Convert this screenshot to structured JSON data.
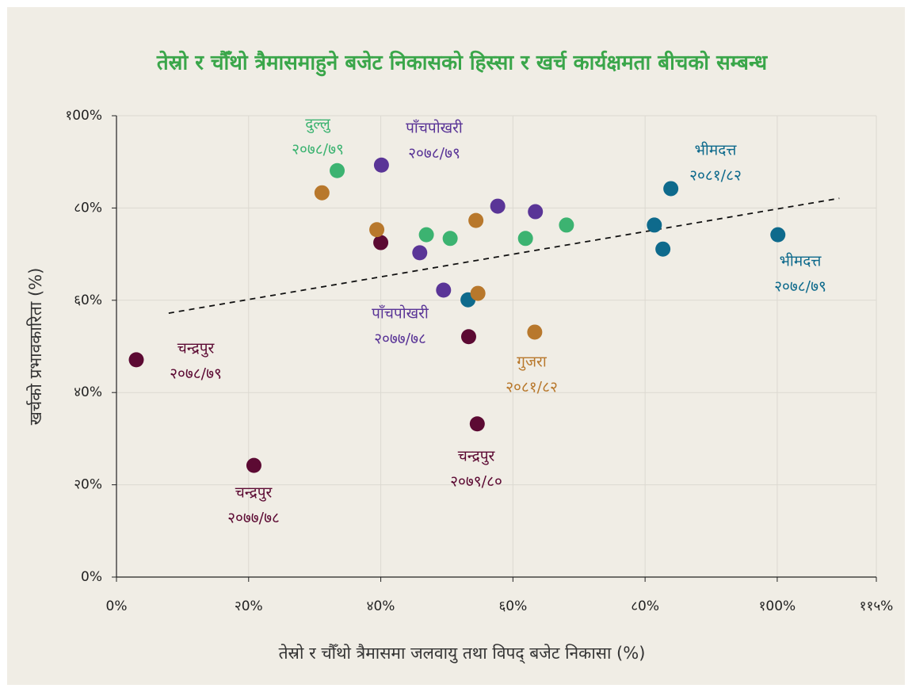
{
  "chart_data": {
    "type": "scatter",
    "title": "तेस्रो र चौँथो त्रैमासमाहुने बजेट निकासको हिस्सा र खर्च कार्यक्षमता बीचको सम्बन्ध",
    "x_label": "तेस्रो र चौँथो त्रैमासमा जलवायु तथा विपद् बजेट निकासा (%)",
    "y_label": "खर्चको प्रभावकारिता (%)",
    "xlim": [
      0,
      115
    ],
    "ylim": [
      0,
      100
    ],
    "xticks": [
      {
        "value": 0,
        "label": "0%"
      },
      {
        "value": 20,
        "label": "२0%"
      },
      {
        "value": 40,
        "label": "४0%"
      },
      {
        "value": 60,
        "label": "६0%"
      },
      {
        "value": 80,
        "label": "८0%"
      },
      {
        "value": 100,
        "label": "१00%"
      },
      {
        "value": 115,
        "label": "११५%"
      }
    ],
    "yticks": [
      {
        "value": 0,
        "label": "0%"
      },
      {
        "value": 20,
        "label": "२0%"
      },
      {
        "value": 40,
        "label": "४0%"
      },
      {
        "value": 60,
        "label": "६0%"
      },
      {
        "value": 80,
        "label": "८0%"
      },
      {
        "value": 100,
        "label": "१00%"
      }
    ],
    "grid": true,
    "series": [
      {
        "color": "#3cb371",
        "x": [
          33.4,
          46.9,
          50.5,
          61.9,
          68.1
        ],
        "values": [
          88.1,
          74.2,
          73.4,
          73.4,
          76.3
        ]
      },
      {
        "color": "#5a3597",
        "x": [
          40.1,
          45.9,
          49.5,
          57.7,
          63.4
        ],
        "values": [
          89.3,
          70.3,
          62.2,
          80.4,
          79.2
        ]
      },
      {
        "color": "#0e6a8c",
        "x": [
          53.2,
          81.4,
          82.7,
          83.9,
          100.1
        ],
        "values": [
          60.1,
          76.3,
          71.1,
          84.2,
          74.2
        ]
      },
      {
        "color": "#5c0a33",
        "x": [
          3.0,
          20.8,
          40.0,
          53.3,
          54.6
        ],
        "values": [
          47.1,
          24.2,
          72.5,
          52.1,
          33.2
        ]
      },
      {
        "color": "#b8782c",
        "x": [
          31.1,
          39.4,
          54.4,
          54.7,
          63.3
        ],
        "values": [
          83.3,
          75.3,
          77.3,
          61.5,
          53.1
        ]
      }
    ],
    "trend_line": {
      "x": [
        7.9,
        109.4
      ],
      "values": [
        57.2,
        82.1
      ]
    },
    "annotations": [
      {
        "name": "दुल्लु",
        "period": "२०७८/७९",
        "color": "#3cb371"
      },
      {
        "name": "पाँचपोखरी",
        "period": "२०७८/७९",
        "color": "#5a3597"
      },
      {
        "name": "भीमदत्त",
        "period": "२०८१/८२",
        "color": "#0e6a8c"
      },
      {
        "name": "भीमदत्त",
        "period": "२०७८/७९",
        "color": "#0e6a8c"
      },
      {
        "name": "पाँचपोखरी",
        "period": "२०७७/७८",
        "color": "#5a3597"
      },
      {
        "name": "चन्द्रपुर",
        "period": "२०७८/७९",
        "color": "#5c0a33"
      },
      {
        "name": "गुजरा",
        "period": "२०८१/८२",
        "color": "#b8782c"
      },
      {
        "name": "चन्द्रपुर",
        "period": "२०७९/८०",
        "color": "#5c0a33"
      },
      {
        "name": "चन्द्रपुर",
        "period": "२०७७/७८",
        "color": "#5c0a33"
      }
    ]
  }
}
